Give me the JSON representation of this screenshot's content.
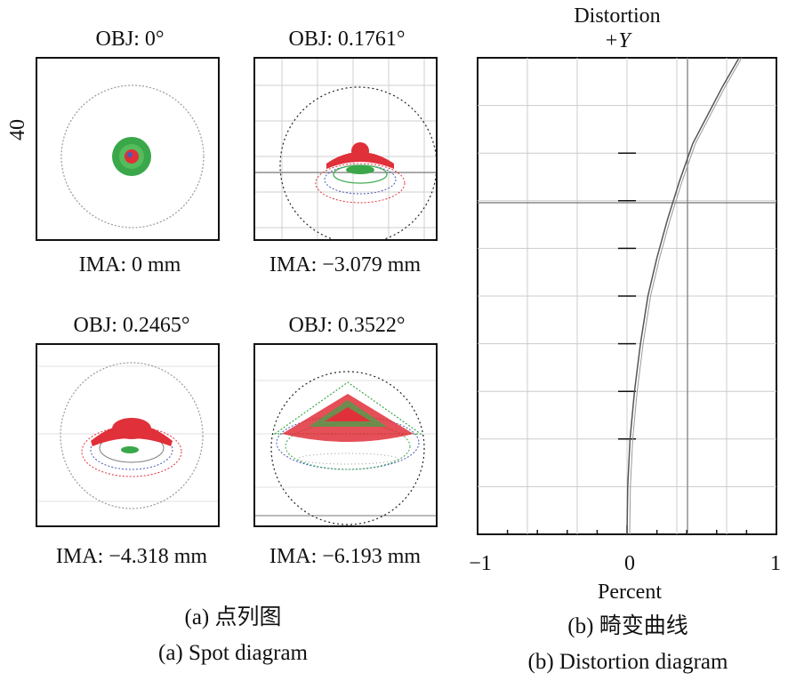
{
  "spot": {
    "side_label": "40",
    "panels": [
      {
        "obj": "OBJ: 0°",
        "ima": "IMA: 0 mm"
      },
      {
        "obj": "OBJ: 0.1761°",
        "ima": "IMA: −3.079 mm"
      },
      {
        "obj": "OBJ: 0.2465°",
        "ima": "IMA: −4.318 mm"
      },
      {
        "obj": "OBJ: 0.3522°",
        "ima": "IMA: −6.193 mm"
      }
    ],
    "caption_cn": "(a) 点列图",
    "caption_en": "(a) Spot diagram"
  },
  "distortion": {
    "title": "Distortion",
    "subtitle": "+Y",
    "xlabel": "Percent",
    "ticks": [
      "−1",
      "0",
      "1"
    ],
    "caption_cn": "(b) 畸变曲线",
    "caption_en": "(b) Distortion diagram"
  },
  "chart_data": {
    "type": "line",
    "title": "Distortion",
    "subtitle": "+Y",
    "xlabel": "Percent",
    "ylabel": "",
    "xlim": [
      -1,
      1
    ],
    "ylim": [
      0,
      1
    ],
    "x_ticks": [
      -1,
      0,
      1
    ],
    "grid": true,
    "series": [
      {
        "x": [
          0.0,
          0.005,
          0.02,
          0.05,
          0.09,
          0.14,
          0.2,
          0.27,
          0.35,
          0.44,
          0.54,
          0.64,
          0.75
        ],
        "y": [
          0.0,
          0.1,
          0.2,
          0.3,
          0.4,
          0.5,
          0.58,
          0.66,
          0.74,
          0.82,
          0.88,
          0.94,
          1.0
        ]
      }
    ]
  },
  "colors": {
    "red": "#e0303a",
    "green": "#3aa84a",
    "blue": "#4a5ab8",
    "grid": "#bbbbbb"
  }
}
